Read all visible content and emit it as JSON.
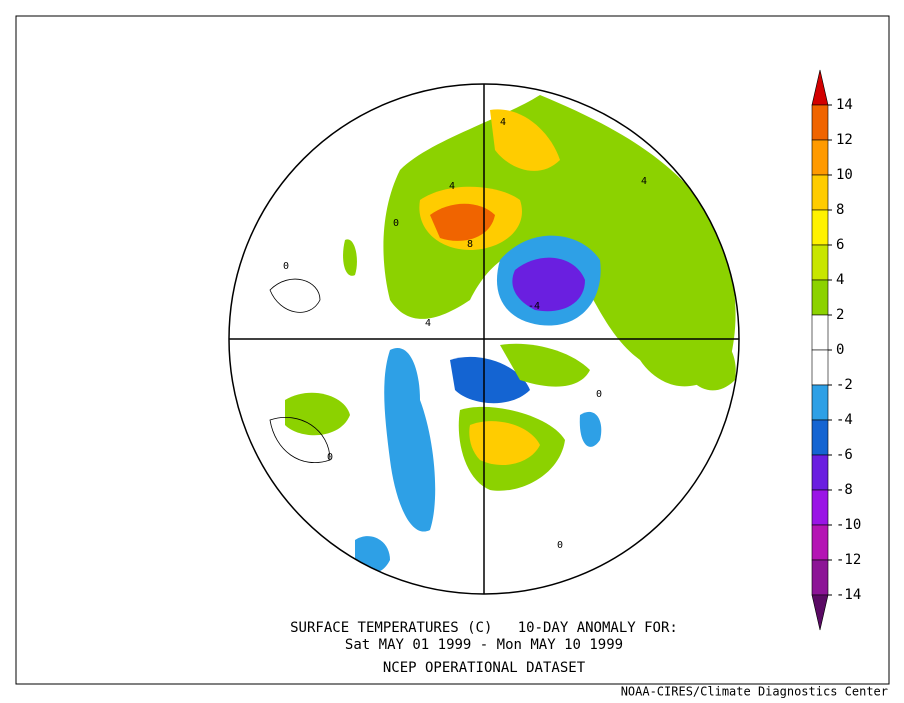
{
  "title": "SURFACE TEMPERATURES (C)   10-DAY ANOMALY FOR:",
  "subtitle": "Sat MAY 01 1999 - Mon MAY 10 1999",
  "dataset": "NCEP OPERATIONAL DATASET",
  "credit": "NOAA-CIRES/Climate Diagnostics Center",
  "colorbar": {
    "levels": [
      14,
      12,
      10,
      8,
      6,
      4,
      2,
      0,
      -2,
      -4,
      -6,
      -8,
      -10,
      -12,
      -14
    ],
    "colors": [
      "#d20000",
      "#f06400",
      "#ff9a00",
      "#ffcc00",
      "#fff200",
      "#c8e600",
      "#8cd200",
      "#ffffff",
      "#ffffff",
      "#2ea0e6",
      "#1464d2",
      "#6a1fe0",
      "#9a14e6",
      "#b414b4",
      "#8c1496",
      "#5a0a64"
    ]
  },
  "contour_labels": [
    "4",
    "4",
    "8",
    "0",
    "-4",
    "4",
    "4",
    "0",
    "0",
    "0",
    "0"
  ]
}
